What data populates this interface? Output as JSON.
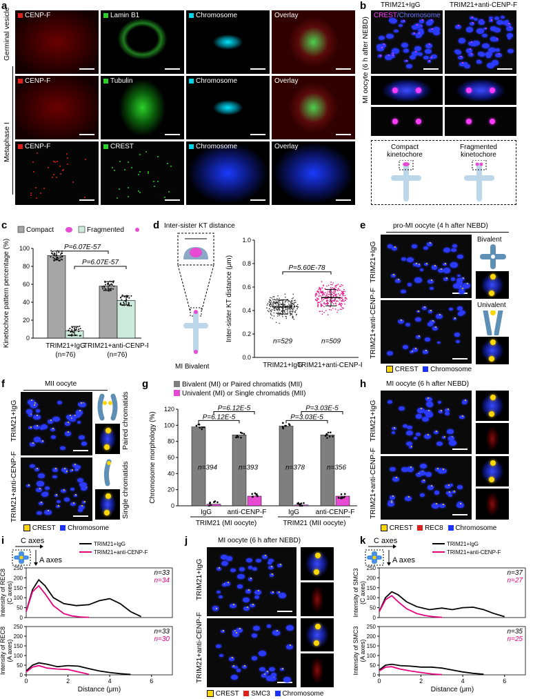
{
  "panel_letters": {
    "a": "a",
    "b": "b",
    "c": "c",
    "d": "d",
    "e": "e",
    "f": "f",
    "g": "g",
    "h": "h",
    "i": "i",
    "j": "j",
    "k": "k"
  },
  "panel_a": {
    "row_labels": [
      "Germinal vesicle",
      "Metaphase I"
    ],
    "rows": [
      [
        "CENP-F",
        "Lamin B1",
        "Chromosome",
        "Overlay"
      ],
      [
        "CENP-F",
        "Tubulin",
        "Chromosome",
        "Overlay"
      ],
      [
        "CENP-F",
        "CREST",
        "Chromosome",
        "Overlay"
      ]
    ]
  },
  "panel_b": {
    "col_titles": [
      "TRIM21+IgG",
      "TRIM21+anti-CENP-F"
    ],
    "overlay_label_1": "CREST",
    "overlay_label_2": "/Chromosome",
    "side_label": "MI oocyte (6 h after NEBD)",
    "schema_left": "Compact\nkinetochore",
    "schema_right": "Fragmented\nkinetochore"
  },
  "panel_c": {
    "legend": [
      "Compact",
      "Fragmented"
    ],
    "ylabel": "Kinetochore pattern percentage (%)",
    "p1": "P=6.07E-57",
    "p2": "P=6.07E-57",
    "xcats": [
      "TRIM21+IgG",
      "TRIM21+anti-CENP-F"
    ],
    "ncats": [
      "(n=76)",
      "(n=76)"
    ]
  },
  "panel_d": {
    "title": "Inter-sister KT distance",
    "schema_label": "MI Bivalent",
    "ylabel": "Inter-sister KT distance (μm)",
    "p": "P=5.60E-78",
    "ns": [
      "n=529",
      "n=509"
    ],
    "xcats": [
      "TRIM21+IgG",
      "TRIM21+anti-CENP-F"
    ]
  },
  "panel_e": {
    "title": "pro-MI oocyte (4 h after NEBD)",
    "rows": [
      "TRIM21+IgG",
      "TRIM21+anti-CENP-F"
    ],
    "side": [
      "Bivalent",
      "Univalent"
    ],
    "legend": [
      "CREST",
      "Chromosome"
    ]
  },
  "panel_f": {
    "title": "MII oocyte",
    "rows": [
      "TRIM21+IgG",
      "TRIM21+anti-CENP-F"
    ],
    "side": [
      "Paired chromatids",
      "Single chromatids"
    ],
    "legend": [
      "CREST",
      "Chromosome"
    ]
  },
  "panel_g": {
    "legend": [
      "Bivalent (MI) or Paired chromatids (MII)",
      "Univalent (MI) or Single chromatids (MII)"
    ],
    "ylabel": "Chromosome morphology (%)",
    "p_labels": [
      "P=6.12E-5",
      "P=6.12E-5",
      "P=3.03E-5",
      "P=3.03E-5"
    ],
    "ns": [
      "n=394",
      "n=393",
      "n=378",
      "n=356"
    ],
    "xcats": [
      "IgG",
      "anti-CENP-F",
      "IgG",
      "anti-CENP-F"
    ],
    "groups": [
      "TRIM21 (MI oocyte)",
      "TRIM21 (MII oocyte)"
    ]
  },
  "panel_h": {
    "title": "MI oocyte (6 h after NEBD)",
    "rows": [
      "TRIM21+IgG",
      "TRIM21+anti-CENP-F"
    ],
    "legend": [
      "CREST",
      "REC8",
      "Chromosome"
    ]
  },
  "panel_i": {
    "c_axes": "C axes",
    "a_axes": "A axes",
    "legend": [
      "TRIM21+IgG",
      "TRIM21+anti-CENP-F"
    ],
    "top_ylabel": "Intensity of REC8\n(C axes)",
    "bottom_ylabel": "Intensity of REC8\n(A axes)",
    "top_n": [
      "n=33",
      "n=34"
    ],
    "bottom_n": [
      "n=33",
      "n=30"
    ],
    "xlabel": "Distance (μm)"
  },
  "panel_j": {
    "title": "MI oocyte (6 h after NEBD)",
    "rows": [
      "TRIM21+IgG",
      "TRIM21+anti-CENP-F"
    ],
    "legend": [
      "CREST",
      "SMC3",
      "Chromosome"
    ]
  },
  "panel_k": {
    "c_axes": "C axes",
    "a_axes": "A axes",
    "legend": [
      "TRIM21+IgG",
      "TRIM21+anti-CENP-F"
    ],
    "top_ylabel": "Intensity of SMC3\n(C axes)",
    "bottom_ylabel": "Intensity of SMC3\n(A axes)",
    "top_n": [
      "n=37",
      "n=27"
    ],
    "bottom_n": [
      "n=35",
      "n=25"
    ],
    "xlabel": "Distance (μm)"
  },
  "colors": {
    "compact": "#a6a6a6",
    "fragmented": "#ccebdc",
    "igg_line": "#000000",
    "anti_line": "#e6007e",
    "univalent": "#e84bd3",
    "crest_yellow": "#ffd700",
    "chromosome_blue": "#1a33ff",
    "red": "#e0201b",
    "green": "#2bd02b",
    "cyan": "#00d4e6"
  },
  "chart_data": [
    {
      "id": "c",
      "type": "bar",
      "categories": [
        "TRIM21+IgG",
        "TRIM21+anti-CENP-F"
      ],
      "series": [
        {
          "name": "Compact",
          "values": [
            92,
            58
          ]
        },
        {
          "name": "Fragmented",
          "values": [
            8,
            42
          ]
        }
      ],
      "ylabel": "Kinetochore pattern percentage (%)",
      "ylim": [
        0,
        100
      ],
      "yticks": [
        0,
        20,
        40,
        60,
        80,
        100
      ]
    },
    {
      "id": "d",
      "type": "scatter",
      "categories": [
        "TRIM21+IgG",
        "TRIM21+anti-CENP-F"
      ],
      "series": [
        {
          "name": "TRIM21+IgG",
          "mean": 0.43,
          "sd": 0.06
        },
        {
          "name": "TRIM21+anti-CENP-F",
          "mean": 0.51,
          "sd": 0.07
        }
      ],
      "ylabel": "Inter-sister KT distance (μm)",
      "ylim": [
        0.0,
        1.0
      ],
      "yticks": [
        0.0,
        0.2,
        0.4,
        0.6,
        0.8,
        1.0
      ]
    },
    {
      "id": "g",
      "type": "bar",
      "categories": [
        "IgG",
        "anti-CENP-F",
        "IgG",
        "anti-CENP-F"
      ],
      "series": [
        {
          "name": "Bivalent (MI) or Paired chromatids (MII)",
          "values": [
            98,
            88,
            99,
            88
          ]
        },
        {
          "name": "Univalent (MI) or Single chromatids (MII)",
          "values": [
            2,
            12,
            1,
            12
          ]
        }
      ],
      "ylabel": "Chromosome morphology (%)",
      "ylim": [
        0,
        120
      ],
      "yticks": [
        0,
        20,
        40,
        60,
        80,
        100,
        120
      ]
    },
    {
      "id": "i",
      "type": "line",
      "xlabel": "Distance (μm)",
      "xlim": [
        0,
        7
      ],
      "xticks": [
        0,
        2,
        4,
        6
      ],
      "subplots": [
        {
          "ylabel": "Intensity of REC8 (C axes)",
          "ylim": [
            0,
            250
          ],
          "yticks": [
            0,
            50,
            100,
            150,
            200,
            250
          ],
          "series": [
            {
              "name": "TRIM21+IgG",
              "x": [
                0,
                0.3,
                0.6,
                0.9,
                1.3,
                1.8,
                2.4,
                3.0,
                3.5,
                4.0,
                4.5,
                5.0,
                5.5
              ],
              "y": [
                30,
                140,
                190,
                160,
                100,
                70,
                60,
                65,
                85,
                95,
                70,
                30,
                5
              ]
            },
            {
              "name": "TRIM21+anti-CENP-F",
              "x": [
                0,
                0.3,
                0.6,
                0.9,
                1.3,
                1.8,
                2.2,
                2.6,
                3.0
              ],
              "y": [
                30,
                130,
                160,
                120,
                60,
                20,
                8,
                3,
                1
              ]
            }
          ]
        },
        {
          "ylabel": "Intensity of REC8 (A axes)",
          "ylim": [
            0,
            250
          ],
          "yticks": [
            0,
            50,
            100,
            150,
            200,
            250
          ],
          "series": [
            {
              "name": "TRIM21+IgG",
              "x": [
                0,
                0.3,
                0.6,
                1.0,
                1.5,
                2.0,
                2.5,
                3.0,
                3.5,
                4.0,
                4.5,
                5.0
              ],
              "y": [
                20,
                50,
                62,
                55,
                42,
                48,
                45,
                32,
                20,
                12,
                6,
                2
              ]
            },
            {
              "name": "TRIM21+anti-CENP-F",
              "x": [
                0,
                0.3,
                0.6,
                1.0,
                1.5,
                2.0,
                2.5,
                3.0
              ],
              "y": [
                15,
                40,
                48,
                35,
                30,
                28,
                15,
                3
              ]
            }
          ]
        }
      ]
    },
    {
      "id": "k",
      "type": "line",
      "xlabel": "Distance (μm)",
      "xlim": [
        0,
        7
      ],
      "xticks": [
        0,
        2,
        4,
        6
      ],
      "subplots": [
        {
          "ylabel": "Intensity of SMC3 (C axes)",
          "ylim": [
            0,
            250
          ],
          "yticks": [
            0,
            50,
            100,
            150,
            200,
            250
          ],
          "series": [
            {
              "name": "TRIM21+IgG",
              "x": [
                0,
                0.3,
                0.6,
                0.9,
                1.3,
                1.8,
                2.4,
                3.0,
                3.5,
                4.0,
                4.5,
                5.0,
                5.5,
                6.0
              ],
              "y": [
                30,
                100,
                130,
                115,
                80,
                55,
                40,
                48,
                40,
                50,
                52,
                40,
                20,
                5
              ]
            },
            {
              "name": "TRIM21+anti-CENP-F",
              "x": [
                0,
                0.3,
                0.6,
                0.9,
                1.3,
                1.8,
                2.2,
                2.6,
                3.0
              ],
              "y": [
                30,
                90,
                110,
                80,
                45,
                20,
                10,
                4,
                1
              ]
            }
          ]
        },
        {
          "ylabel": "Intensity of SMC3 (A axes)",
          "ylim": [
            0,
            250
          ],
          "yticks": [
            0,
            50,
            100,
            150,
            200,
            250
          ],
          "series": [
            {
              "name": "TRIM21+IgG",
              "x": [
                0,
                0.3,
                0.6,
                1.0,
                1.5,
                2.0,
                2.5,
                3.0,
                3.5,
                4.0,
                4.5,
                5.0
              ],
              "y": [
                25,
                50,
                55,
                48,
                45,
                40,
                40,
                35,
                25,
                15,
                8,
                3
              ]
            },
            {
              "name": "TRIM21+anti-CENP-F",
              "x": [
                0,
                0.3,
                0.6,
                1.0,
                1.5,
                2.0,
                2.5,
                3.0
              ],
              "y": [
                20,
                40,
                42,
                30,
                20,
                12,
                5,
                1
              ]
            }
          ]
        }
      ]
    }
  ]
}
